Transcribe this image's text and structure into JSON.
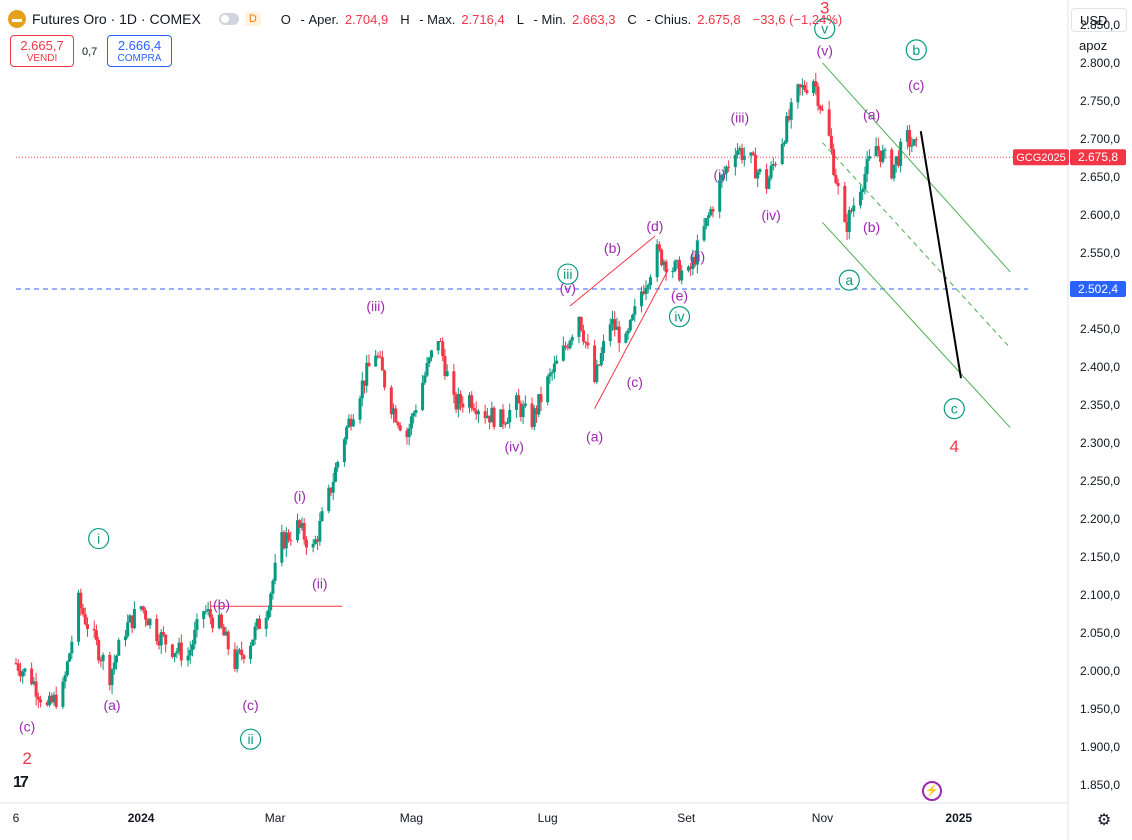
{
  "header": {
    "symbol_icon": "gold-bar-icon",
    "title": "Futures Oro · 1D · COMEX",
    "delay_badge": "D",
    "ohlc": [
      {
        "key": "O",
        "label": "Aper.",
        "value": "2.704,9"
      },
      {
        "key": "H",
        "label": "Max.",
        "value": "2.716,4"
      },
      {
        "key": "L",
        "label": "Min.",
        "value": "2.663,3"
      },
      {
        "key": "C",
        "label": "Chius.",
        "value": "2.675,8"
      },
      {
        "key": "chg",
        "label": "",
        "value": "−33,6 (−1,24%)"
      }
    ]
  },
  "trade": {
    "sell_price": "2.665,7",
    "sell_label": "VENDI",
    "spread": "0,7",
    "buy_price": "2.666,4",
    "buy_label": "COMPRA"
  },
  "axis_controls": {
    "currency": "USD",
    "scale": "apoz"
  },
  "colors": {
    "up": "#089981",
    "down": "#f23645",
    "wave_purple": "#9c27b0",
    "wave_teal": "#089981",
    "wave_red": "#f23645",
    "channel_green": "#4caf50",
    "hline_blue": "#2962ff",
    "price_line": "#f23645"
  },
  "chart_data": {
    "type": "candlestick",
    "symbol": "GCG2025",
    "y_axis": {
      "ticks": [
        "2.850,0",
        "2.800,0",
        "2.750,0",
        "2.700,0",
        "2.650,0",
        "2.600,0",
        "2.550,0",
        "2.500,0",
        "2.450,0",
        "2.400,0",
        "2.350,0",
        "2.300,0",
        "2.250,0",
        "2.200,0",
        "2.150,0",
        "2.100,0",
        "2.050,0",
        "2.000,0",
        "1.950,0",
        "1.900,0",
        "1.850,0"
      ],
      "tick_values": [
        2850,
        2800,
        2750,
        2700,
        2650,
        2600,
        2550,
        2500,
        2450,
        2400,
        2350,
        2300,
        2250,
        2200,
        2150,
        2100,
        2050,
        2000,
        1950,
        1900,
        1850
      ],
      "range": [
        1830,
        2880
      ]
    },
    "x_axis": {
      "labels": [
        "6",
        "2024",
        "Mar",
        "Mag",
        "Lug",
        "Set",
        "Nov",
        "2025"
      ],
      "label_dates": [
        "2023-11-06",
        "2024-01-01",
        "2024-03-01",
        "2024-05-01",
        "2024-07-01",
        "2024-09-01",
        "2024-11-01",
        "2025-01-01"
      ],
      "range": [
        "2023-11-06",
        "2025-02-01"
      ]
    },
    "price_badges": [
      {
        "label": "GCG2025",
        "value": "2.675,8",
        "price": 2675.8
      },
      {
        "label": "",
        "value": "2.502,4",
        "price": 2502.4
      }
    ],
    "close_path": [
      [
        "2023-11-06",
        2010
      ],
      [
        "2023-11-13",
        1990
      ],
      [
        "2023-11-20",
        1950
      ],
      [
        "2023-11-27",
        1975
      ],
      [
        "2023-12-04",
        2090
      ],
      [
        "2023-12-11",
        2040
      ],
      [
        "2023-12-18",
        1995
      ],
      [
        "2023-12-25",
        2055
      ],
      [
        "2024-01-01",
        2085
      ],
      [
        "2024-01-08",
        2050
      ],
      [
        "2024-01-15",
        2030
      ],
      [
        "2024-01-22",
        2020
      ],
      [
        "2024-01-29",
        2080
      ],
      [
        "2024-02-05",
        2060
      ],
      [
        "2024-02-12",
        2010
      ],
      [
        "2024-02-19",
        2040
      ],
      [
        "2024-02-26",
        2080
      ],
      [
        "2024-03-04",
        2170
      ],
      [
        "2024-03-11",
        2190
      ],
      [
        "2024-03-18",
        2160
      ],
      [
        "2024-03-25",
        2230
      ],
      [
        "2024-04-01",
        2310
      ],
      [
        "2024-04-08",
        2370
      ],
      [
        "2024-04-15",
        2420
      ],
      [
        "2024-04-22",
        2350
      ],
      [
        "2024-04-29",
        2310
      ],
      [
        "2024-05-06",
        2380
      ],
      [
        "2024-05-13",
        2440
      ],
      [
        "2024-05-20",
        2350
      ],
      [
        "2024-05-27",
        2360
      ],
      [
        "2024-06-03",
        2340
      ],
      [
        "2024-06-10",
        2330
      ],
      [
        "2024-06-17",
        2350
      ],
      [
        "2024-06-24",
        2330
      ],
      [
        "2024-07-01",
        2380
      ],
      [
        "2024-07-08",
        2420
      ],
      [
        "2024-07-15",
        2470
      ],
      [
        "2024-07-22",
        2380
      ],
      [
        "2024-07-29",
        2460
      ],
      [
        "2024-08-05",
        2430
      ],
      [
        "2024-08-12",
        2500
      ],
      [
        "2024-08-19",
        2550
      ],
      [
        "2024-08-26",
        2530
      ],
      [
        "2024-09-02",
        2520
      ],
      [
        "2024-09-09",
        2580
      ],
      [
        "2024-09-16",
        2640
      ],
      [
        "2024-09-23",
        2690
      ],
      [
        "2024-09-30",
        2670
      ],
      [
        "2024-10-07",
        2640
      ],
      [
        "2024-10-14",
        2700
      ],
      [
        "2024-10-21",
        2760
      ],
      [
        "2024-10-28",
        2780
      ],
      [
        "2024-11-04",
        2700
      ],
      [
        "2024-11-11",
        2580
      ],
      [
        "2024-11-18",
        2640
      ],
      [
        "2024-11-25",
        2690
      ],
      [
        "2024-12-02",
        2660
      ],
      [
        "2024-12-09",
        2700
      ],
      [
        "2024-12-16",
        2675.8
      ]
    ],
    "wave_labels": [
      {
        "text": "(c)",
        "date": "2023-11-11",
        "price": 1927,
        "color": "wave_purple"
      },
      {
        "text": "2",
        "date": "2023-11-11",
        "price": 1885,
        "color": "wave_red"
      },
      {
        "text": "i",
        "date": "2023-12-13",
        "price": 2174,
        "color": "wave_teal",
        "circled": true
      },
      {
        "text": "(a)",
        "date": "2023-12-19",
        "price": 1955,
        "color": "wave_purple"
      },
      {
        "text": "(b)",
        "date": "2024-02-06",
        "price": 2087,
        "color": "wave_purple"
      },
      {
        "text": "(c)",
        "date": "2024-02-19",
        "price": 1955,
        "color": "wave_purple"
      },
      {
        "text": "ii",
        "date": "2024-02-19",
        "price": 1910,
        "color": "wave_teal",
        "circled": true
      },
      {
        "text": "(i)",
        "date": "2024-03-12",
        "price": 2230,
        "color": "wave_purple"
      },
      {
        "text": "(ii)",
        "date": "2024-03-21",
        "price": 2115,
        "color": "wave_purple"
      },
      {
        "text": "(iii)",
        "date": "2024-04-15",
        "price": 2480,
        "color": "wave_purple"
      },
      {
        "text": "(iv)",
        "date": "2024-06-16",
        "price": 2295,
        "color": "wave_purple"
      },
      {
        "text": "iii",
        "date": "2024-07-10",
        "price": 2522,
        "color": "wave_teal",
        "circled": true
      },
      {
        "text": "(v)",
        "date": "2024-07-10",
        "price": 2504,
        "color": "wave_purple"
      },
      {
        "text": "(a)",
        "date": "2024-07-22",
        "price": 2308,
        "color": "wave_purple"
      },
      {
        "text": "(b)",
        "date": "2024-07-30",
        "price": 2556,
        "color": "wave_purple"
      },
      {
        "text": "(c)",
        "date": "2024-08-09",
        "price": 2380,
        "color": "wave_purple"
      },
      {
        "text": "(d)",
        "date": "2024-08-18",
        "price": 2585,
        "color": "wave_purple"
      },
      {
        "text": "(e)",
        "date": "2024-08-29",
        "price": 2494,
        "color": "wave_purple"
      },
      {
        "text": "iv",
        "date": "2024-08-29",
        "price": 2466,
        "color": "wave_teal",
        "circled": true
      },
      {
        "text": "(ii)",
        "date": "2024-09-06",
        "price": 2545,
        "color": "wave_purple"
      },
      {
        "text": "(i)",
        "date": "2024-09-16",
        "price": 2653,
        "color": "wave_purple"
      },
      {
        "text": "(iii)",
        "date": "2024-09-25",
        "price": 2728,
        "color": "wave_purple"
      },
      {
        "text": "(iv)",
        "date": "2024-10-09",
        "price": 2600,
        "color": "wave_purple"
      },
      {
        "text": "(v)",
        "date": "2024-11-02",
        "price": 2816,
        "color": "wave_purple"
      },
      {
        "text": "v",
        "date": "2024-11-02",
        "price": 2845,
        "color": "wave_teal",
        "circled": true
      },
      {
        "text": "3",
        "date": "2024-11-02",
        "price": 2873,
        "color": "wave_red"
      },
      {
        "text": "(a)",
        "date": "2024-11-23",
        "price": 2732,
        "color": "wave_purple"
      },
      {
        "text": "(b)",
        "date": "2024-11-23",
        "price": 2584,
        "color": "wave_purple"
      },
      {
        "text": "a",
        "date": "2024-11-13",
        "price": 2514,
        "color": "wave_teal",
        "circled": true
      },
      {
        "text": "b",
        "date": "2024-12-13",
        "price": 2817,
        "color": "wave_teal",
        "circled": true
      },
      {
        "text": "(c)",
        "date": "2024-12-13",
        "price": 2771,
        "color": "wave_purple"
      },
      {
        "text": "c",
        "date": "2024-12-30",
        "price": 2345,
        "color": "wave_teal",
        "circled": true
      },
      {
        "text": "4",
        "date": "2024-12-30",
        "price": 2296,
        "color": "wave_red"
      }
    ],
    "lines": [
      {
        "color": "price_line",
        "dash": "dotted",
        "from": [
          "2023-11-06",
          2675.8
        ],
        "to": [
          "2025-02-01",
          2675.8
        ]
      },
      {
        "color": "hline_blue",
        "dash": "dashed",
        "from": [
          "2023-11-06",
          2502.4
        ],
        "to": [
          "2025-02-01",
          2502.4
        ]
      },
      {
        "color": "wave_red",
        "dash": "solid",
        "from": [
          "2024-02-01",
          2085
        ],
        "to": [
          "2024-03-31",
          2085
        ]
      },
      {
        "color": "wave_red",
        "dash": "solid",
        "from": [
          "2024-07-11",
          2480
        ],
        "to": [
          "2024-08-18",
          2572
        ]
      },
      {
        "color": "wave_red",
        "dash": "solid",
        "from": [
          "2024-07-22",
          2345
        ],
        "to": [
          "2024-08-24",
          2528
        ]
      },
      {
        "color": "channel_green",
        "dash": "solid",
        "from": [
          "2024-11-01",
          2800
        ],
        "to": [
          "2025-01-24",
          2525
        ]
      },
      {
        "color": "channel_green",
        "dash": "dashed",
        "from": [
          "2024-11-01",
          2695
        ],
        "to": [
          "2025-01-24",
          2425
        ]
      },
      {
        "color": "channel_green",
        "dash": "solid",
        "from": [
          "2024-11-01",
          2590
        ],
        "to": [
          "2025-01-24",
          2320
        ]
      },
      {
        "color": "black",
        "dash": "solid",
        "width": 2,
        "from": [
          "2024-12-15",
          2710
        ],
        "to": [
          "2025-01-02",
          2385
        ]
      }
    ]
  }
}
